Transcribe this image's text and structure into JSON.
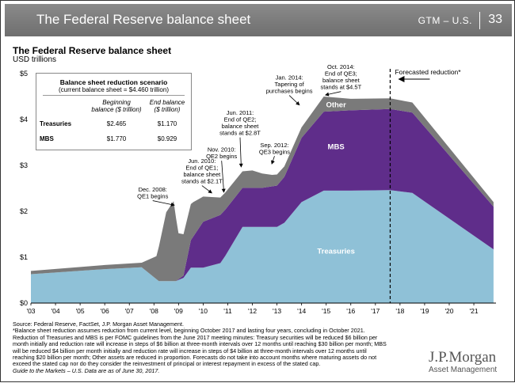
{
  "header": {
    "title": "The Federal Reserve balance sheet",
    "section": "GTM – U.S.",
    "page": "33"
  },
  "chart_title": "The Federal Reserve balance sheet",
  "chart_unit": "USD trillions",
  "scenario": {
    "title": "Balance sheet reduction scenario",
    "subtitle": "(current balance sheet = $4.460 trillion)",
    "col1": [
      "Beginning",
      "balance ($ trillion)"
    ],
    "col2": [
      "End balance",
      "($ trillion)"
    ],
    "rows": [
      {
        "label": "Treasuries",
        "begin": "$2.465",
        "end": "$1.170"
      },
      {
        "label": "MBS",
        "begin": "$1.770",
        "end": "$0.929"
      }
    ]
  },
  "chart_data": {
    "type": "area",
    "stacked": true,
    "x_unit": "year",
    "xlim": [
      2003,
      2021.9
    ],
    "ylim": [
      0,
      5
    ],
    "yticks": [
      0,
      1,
      2,
      3,
      4,
      5
    ],
    "ytick_labels": [
      "$0",
      "$1",
      "$2",
      "$3",
      "$4",
      "$5"
    ],
    "xtick_labels": [
      "'03",
      "'04",
      "'05",
      "'06",
      "'07",
      "'08",
      "'09",
      "'10",
      "'11",
      "'12",
      "'13",
      "'14",
      "'15",
      "'16",
      "'17",
      "'18",
      "'19",
      "'20",
      "'21"
    ],
    "forecast_start": 2017.6,
    "forecast_label": "Forecasted reduction*",
    "series": [
      {
        "name": "Treasuries",
        "color": "#8fc1d7",
        "x": [
          2003,
          2006,
          2007.5,
          2008.2,
          2008.9,
          2009.2,
          2009.5,
          2010.0,
          2010.7,
          2010.9,
          2011.6,
          2012,
          2013,
          2013.3,
          2014,
          2014.9,
          2016,
          2017.6,
          2018.5,
          2021.8
        ],
        "y": [
          0.63,
          0.74,
          0.78,
          0.48,
          0.48,
          0.55,
          0.77,
          0.77,
          0.87,
          1.03,
          1.66,
          1.66,
          1.66,
          1.75,
          2.2,
          2.45,
          2.45,
          2.46,
          2.4,
          1.17
        ]
      },
      {
        "name": "MBS",
        "color": "#5f2d8a",
        "x": [
          2003,
          2008.9,
          2009.2,
          2009.5,
          2010,
          2010.7,
          2011.6,
          2012.4,
          2013,
          2013.3,
          2014,
          2014.9,
          2016,
          2017.6,
          2018.5,
          2021.8
        ],
        "y": [
          0,
          0,
          0.05,
          0.6,
          1.0,
          1.05,
          0.85,
          0.85,
          0.9,
          1.0,
          1.4,
          1.72,
          1.75,
          1.77,
          1.75,
          0.93
        ]
      },
      {
        "name": "Other",
        "color": "#7a7a7a",
        "x": [
          2003,
          2007.5,
          2008.1,
          2008.5,
          2008.8,
          2009.0,
          2009.2,
          2009.6,
          2010,
          2010.7,
          2011.6,
          2012,
          2012.8,
          2013.3,
          2014,
          2014.9,
          2016,
          2017.6,
          2018.5,
          2021.8
        ],
        "y": [
          0.07,
          0.1,
          0.5,
          1.5,
          1.74,
          1.0,
          0.9,
          0.75,
          0.55,
          0.38,
          0.36,
          0.38,
          0.25,
          0.23,
          0.23,
          0.33,
          0.25,
          0.23,
          0.22,
          0.1
        ]
      }
    ],
    "series_labels": [
      {
        "text": "Other",
        "x": 2015.4,
        "y": 4.27
      },
      {
        "text": "MBS",
        "x": 2015.4,
        "y": 3.35
      },
      {
        "text": "Treasuries",
        "x": 2015.4,
        "y": 1.08
      }
    ],
    "annotations": [
      {
        "lines": [
          "Dec. 2008:",
          "QE1 begins"
        ],
        "x": 2008.95,
        "y": 2.12,
        "tx": 2007.95,
        "ty": 2.43
      },
      {
        "lines": [
          "Jun. 2010:",
          "End of QE1;",
          "balance sheet",
          "stands at $2.1T"
        ],
        "x": 2010.45,
        "y": 2.36,
        "tx": 2009.95,
        "ty": 3.05
      },
      {
        "lines": [
          "Nov. 2010:",
          "QE2 begins"
        ],
        "x": 2010.85,
        "y": 2.35,
        "tx": 2010.75,
        "ty": 3.3
      },
      {
        "lines": [
          "Jun. 2011:",
          "End of QE2;",
          "balance sheet",
          "stands at $2.8T"
        ],
        "x": 2011.55,
        "y": 2.9,
        "tx": 2011.5,
        "ty": 4.1
      },
      {
        "lines": [
          "Sep. 2012:",
          "QE3 begins"
        ],
        "x": 2012.75,
        "y": 2.97,
        "tx": 2012.9,
        "ty": 3.4
      },
      {
        "lines": [
          "Jan. 2014:",
          "Tapering of",
          "purchases begins"
        ],
        "x": 2014.0,
        "y": 4.27,
        "tx": 2013.5,
        "ty": 4.87
      },
      {
        "lines": [
          "Oct. 2014:",
          "End of QE3;",
          "balance sheet",
          "stands at $4.5T"
        ],
        "x": 2014.85,
        "y": 4.52,
        "tx": 2015.6,
        "ty": 5.1
      }
    ]
  },
  "footnotes": [
    "Source: Federal Reserve, FactSet, J.P. Morgan Asset Management.",
    "*Balance sheet reduction assumes reduction from current level, beginning October 2017 and lasting four years, concluding in October 2021.",
    "Reduction of Treasuries and MBS is per FOMC guidelines from the June 2017 meeting minutes: Treasury securities will be reduced $6 billion per",
    "month initially and reduction rate will increase in steps of $6 billion at three-month intervals over 12 months until reaching $30 billion per month; MBS",
    "will be reduced $4 billion per month initially and reduction rate will increase in steps of $4 billion at three-month intervals over 12 months until",
    "reaching $20 billion per month; Other assets are reduced in proportion. Forecasts do not take into account months where maturing assets do not",
    "exceed the stated cap nor do they consider the reinvestment of principal or interest repayment in excess of the stated cap.",
    "Guide to the Markets – U.S. Data are as of June 30, 2017."
  ],
  "logo": {
    "name": "J.P.Morgan",
    "sub": "Asset Management"
  }
}
